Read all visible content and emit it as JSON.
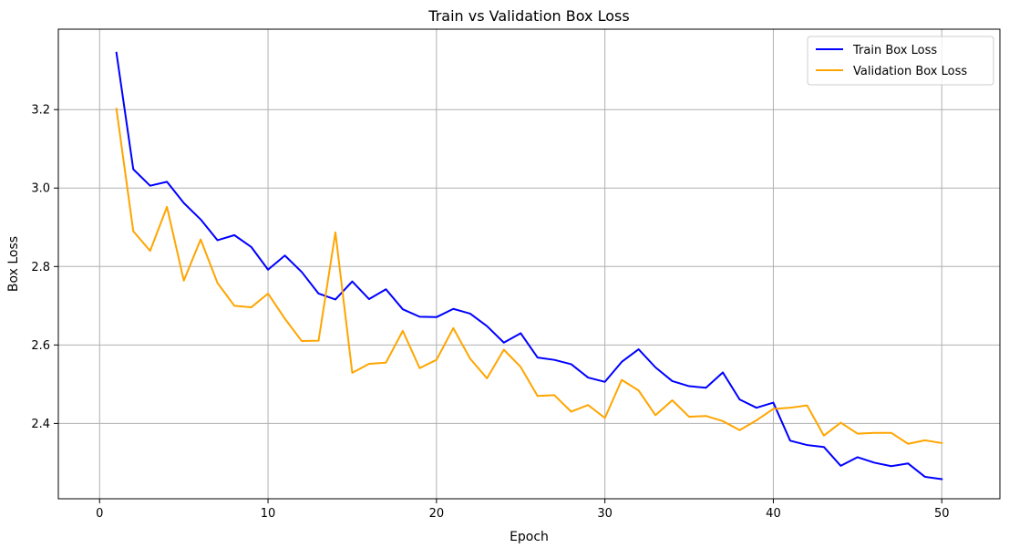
{
  "chart_data": {
    "type": "line",
    "title": "Train vs Validation Box Loss",
    "xlabel": "Epoch",
    "ylabel": "Box Loss",
    "xlim": [
      -2.45,
      53.45
    ],
    "ylim": [
      2.208,
      3.405
    ],
    "xticks": [
      0,
      10,
      20,
      30,
      40,
      50
    ],
    "yticks": [
      2.4,
      2.6,
      2.8,
      3.0,
      3.2
    ],
    "xtick_labels": [
      "0",
      "10",
      "20",
      "30",
      "40",
      "50"
    ],
    "ytick_labels": [
      "2.4",
      "2.6",
      "2.8",
      "3.0",
      "3.2"
    ],
    "grid": true,
    "legend_position": "top-right",
    "x": [
      1,
      2,
      3,
      4,
      5,
      6,
      7,
      8,
      9,
      10,
      11,
      12,
      13,
      14,
      15,
      16,
      17,
      18,
      19,
      20,
      21,
      22,
      23,
      24,
      25,
      26,
      27,
      28,
      29,
      30,
      31,
      32,
      33,
      34,
      35,
      36,
      37,
      38,
      39,
      40,
      41,
      42,
      43,
      44,
      45,
      46,
      47,
      48,
      49,
      50
    ],
    "series": [
      {
        "name": "Train Box Loss",
        "color": "#0000ff",
        "values": [
          3.345,
          3.048,
          3.006,
          3.016,
          2.962,
          2.92,
          2.867,
          2.88,
          2.85,
          2.792,
          2.828,
          2.786,
          2.731,
          2.716,
          2.762,
          2.717,
          2.742,
          2.691,
          2.672,
          2.671,
          2.692,
          2.68,
          2.648,
          2.606,
          2.63,
          2.568,
          2.562,
          2.551,
          2.517,
          2.506,
          2.557,
          2.589,
          2.543,
          2.508,
          2.495,
          2.491,
          2.53,
          2.461,
          2.44,
          2.453,
          2.356,
          2.345,
          2.34,
          2.292,
          2.314,
          2.3,
          2.291,
          2.298,
          2.264,
          2.258
        ]
      },
      {
        "name": "Validation Box Loss",
        "color": "#ffa500",
        "values": [
          3.202,
          2.89,
          2.84,
          2.952,
          2.764,
          2.869,
          2.758,
          2.7,
          2.696,
          2.731,
          2.667,
          2.61,
          2.611,
          2.887,
          2.529,
          2.552,
          2.555,
          2.636,
          2.541,
          2.562,
          2.643,
          2.565,
          2.515,
          2.588,
          2.544,
          2.47,
          2.472,
          2.43,
          2.447,
          2.414,
          2.511,
          2.484,
          2.421,
          2.459,
          2.417,
          2.419,
          2.406,
          2.383,
          2.408,
          2.437,
          2.44,
          2.446,
          2.369,
          2.402,
          2.374,
          2.376,
          2.376,
          2.348,
          2.357,
          2.35
        ]
      }
    ]
  }
}
